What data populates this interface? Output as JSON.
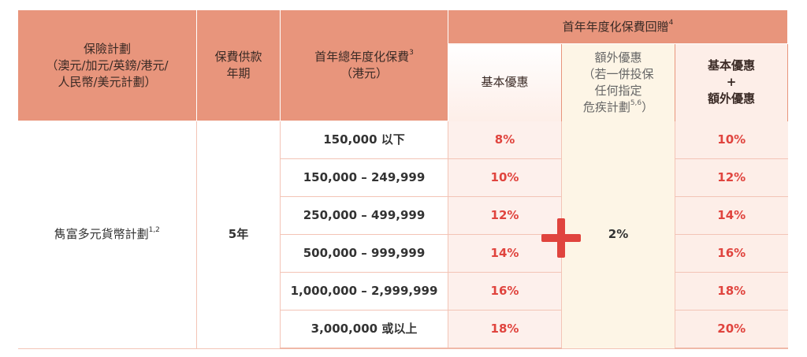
{
  "header": {
    "plan": [
      "保險計劃",
      "（澳元/加元/英鎊/港元/",
      "人民幣/美元計劃）"
    ],
    "term": [
      "保費供款",
      "年期"
    ],
    "premium": {
      "lines": [
        "首年總年度化保費",
        "（港元）"
      ],
      "sup": "3"
    },
    "rebate": {
      "title": "首年年度化保費回贈",
      "sup": "4"
    },
    "basic": "基本優惠",
    "extra": {
      "lines": [
        "額外優惠",
        "（若一併投保",
        "任何指定",
        "危疾計劃"
      ],
      "sup": "5,6",
      "close": "）"
    },
    "total": [
      "基本優惠",
      "+",
      "額外優惠"
    ]
  },
  "body": {
    "plan": "雋富多元貨幣計劃",
    "plan_sup": "1,2",
    "term": "5年",
    "extra": "2%",
    "rows": [
      {
        "range": "150,000 以下",
        "basic": "8%",
        "total": "10%"
      },
      {
        "range": "150,000 – 249,999",
        "basic": "10%",
        "total": "12%"
      },
      {
        "range": "250,000 – 499,999",
        "basic": "12%",
        "total": "14%"
      },
      {
        "range": "500,000 – 999,999",
        "basic": "14%",
        "total": "16%"
      },
      {
        "range": "1,000,000 – 2,999,999",
        "basic": "16%",
        "total": "18%"
      },
      {
        "range": "3,000,000 或以上",
        "basic": "18%",
        "total": "20%"
      }
    ]
  }
}
